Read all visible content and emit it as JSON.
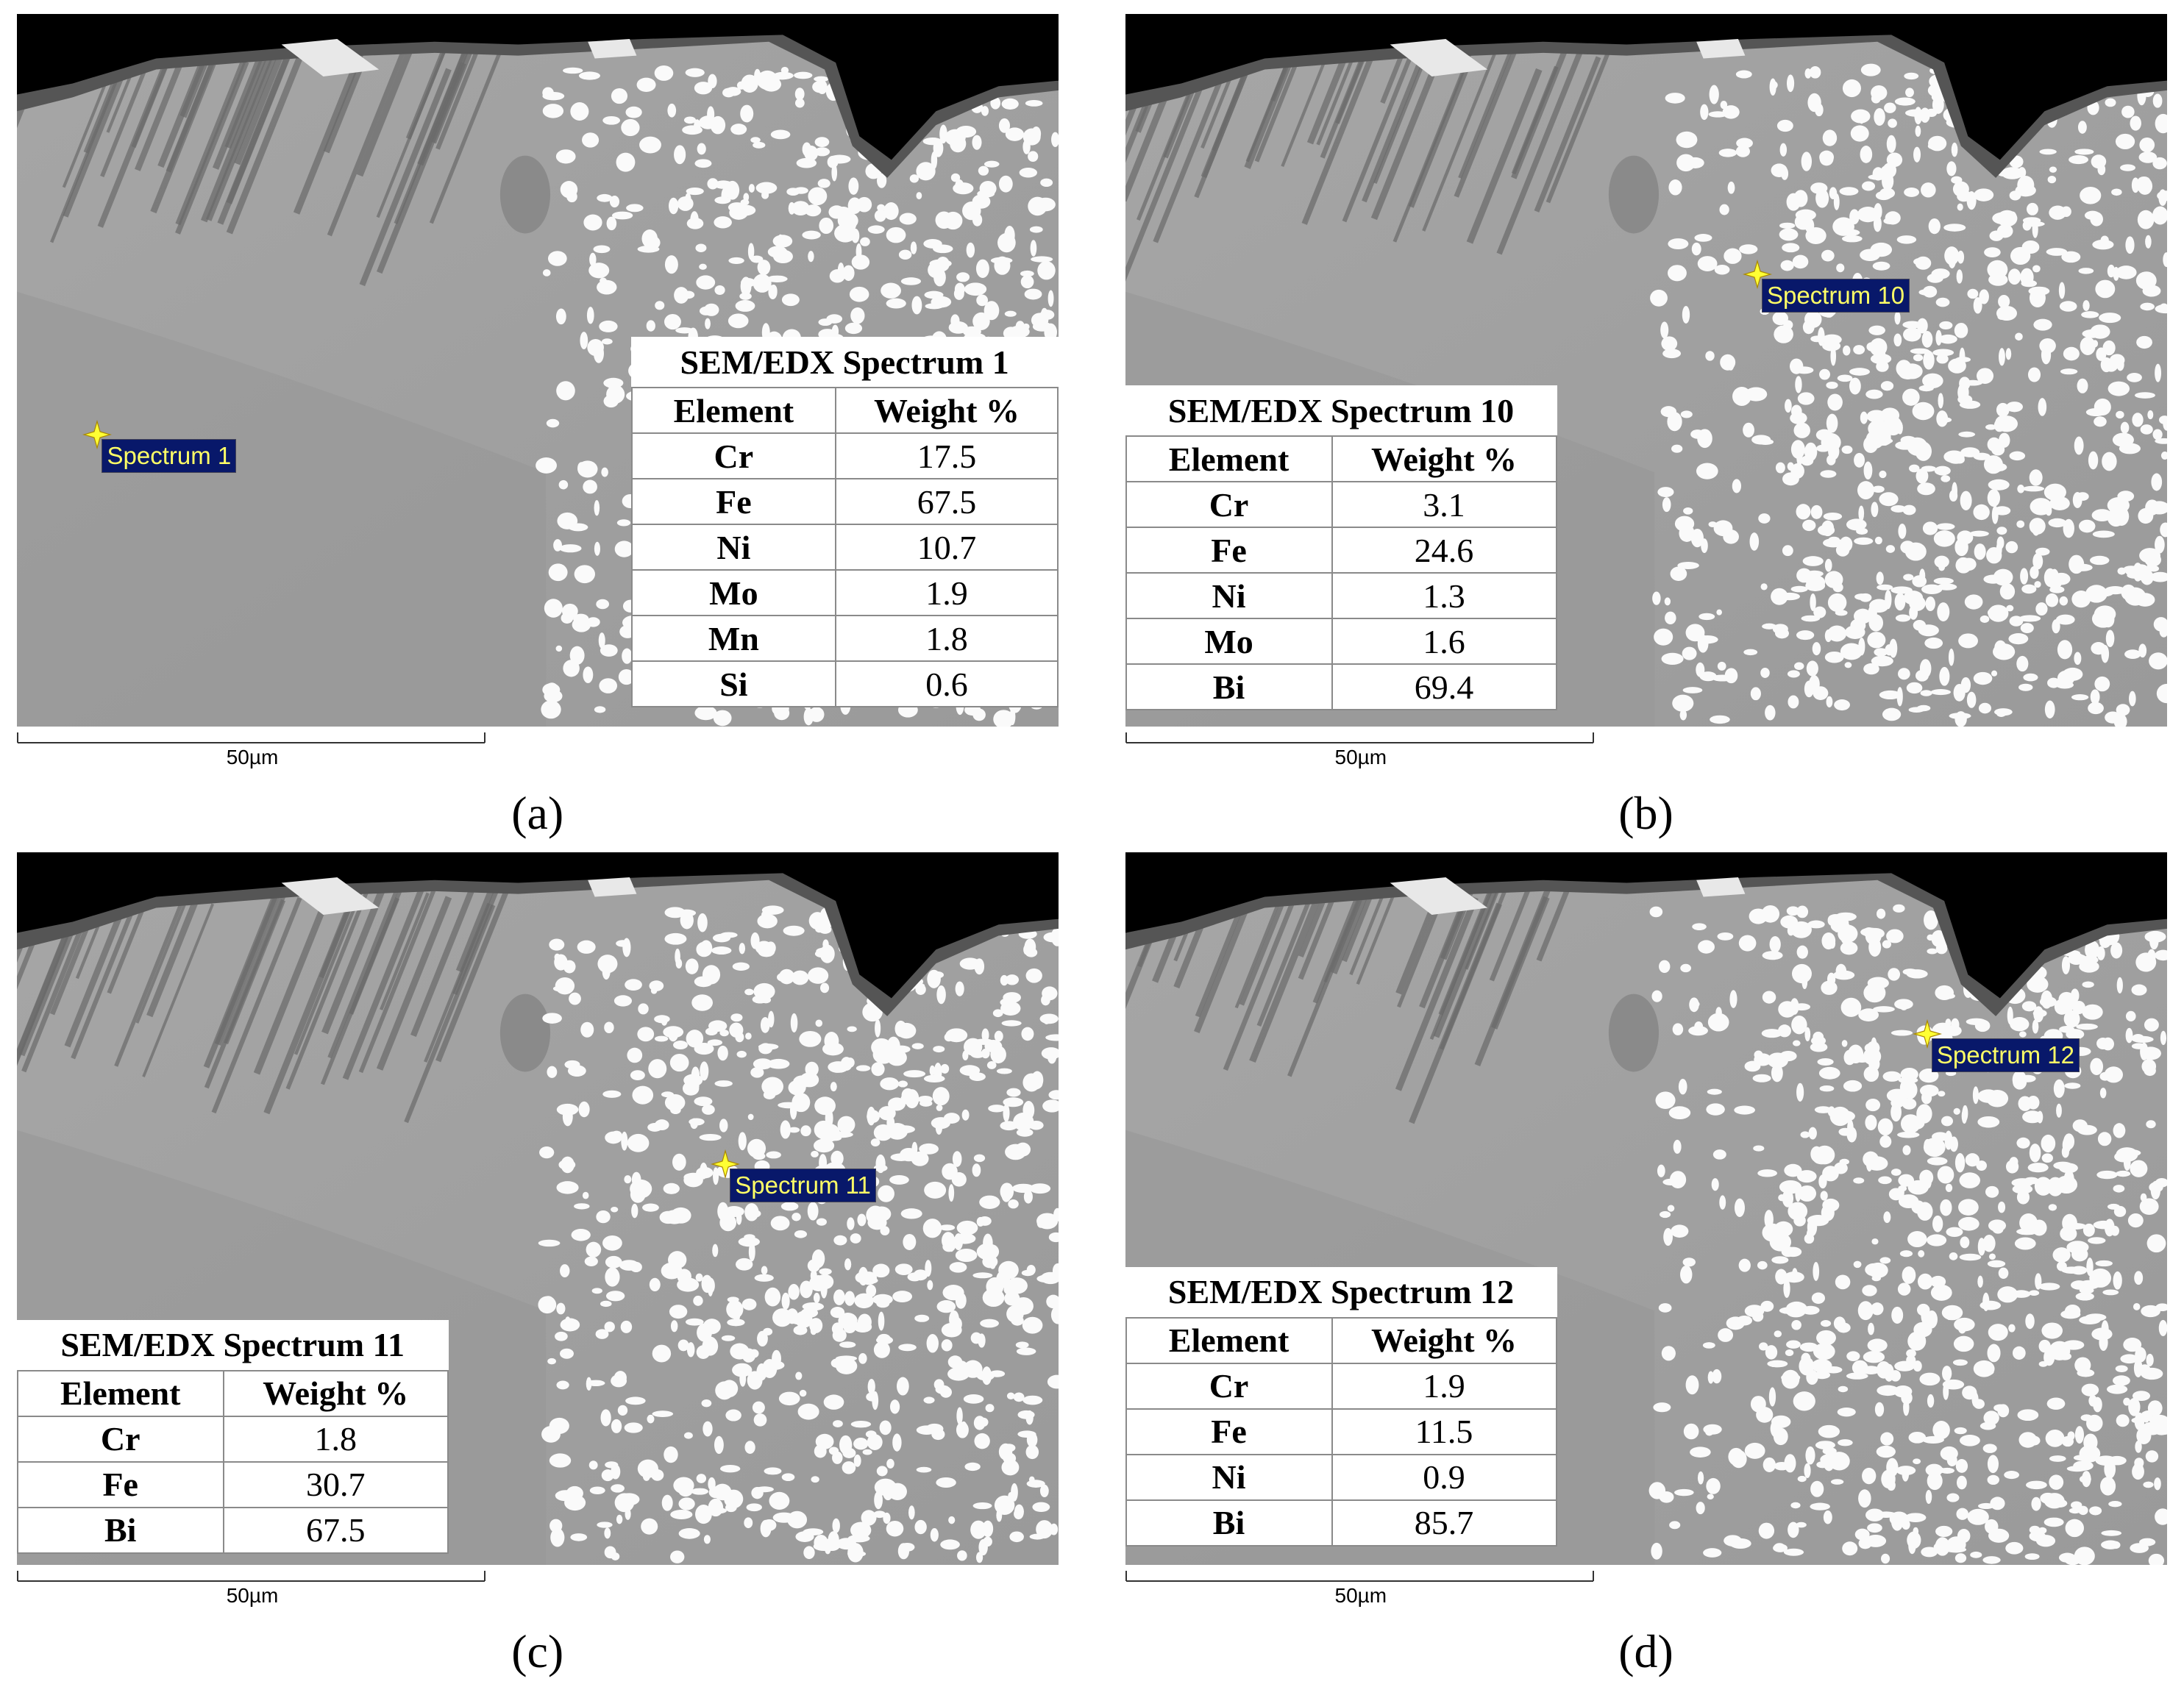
{
  "panels": [
    {
      "label": "(a)",
      "spectrum": "Spectrum 1",
      "scale": "50µm",
      "table": {
        "title": "SEM/EDX Spectrum 1",
        "headers": [
          "Element",
          "Weight %"
        ],
        "rows": [
          [
            "Cr",
            17.5
          ],
          [
            "Fe",
            67.5
          ],
          [
            "Ni",
            10.7
          ],
          [
            "Mo",
            1.9
          ],
          [
            "Mn",
            1.8
          ],
          [
            "Si",
            0.6
          ]
        ]
      }
    },
    {
      "label": "(b)",
      "spectrum": "Spectrum 10",
      "scale": "50µm",
      "table": {
        "title": "SEM/EDX Spectrum 10",
        "headers": [
          "Element",
          "Weight %"
        ],
        "rows": [
          [
            "Cr",
            3.1
          ],
          [
            "Fe",
            24.6
          ],
          [
            "Ni",
            1.3
          ],
          [
            "Mo",
            1.6
          ],
          [
            "Bi",
            69.4
          ]
        ]
      }
    },
    {
      "label": "(c)",
      "spectrum": "Spectrum 11",
      "scale": "50µm",
      "table": {
        "title": "SEM/EDX Spectrum 11",
        "headers": [
          "Element",
          "Weight %"
        ],
        "rows": [
          [
            "Cr",
            1.8
          ],
          [
            "Fe",
            30.7
          ],
          [
            "Bi",
            67.5
          ]
        ]
      }
    },
    {
      "label": "(d)",
      "spectrum": "Spectrum 12",
      "scale": "50µm",
      "table": {
        "title": "SEM/EDX Spectrum 12",
        "headers": [
          "Element",
          "Weight %"
        ],
        "rows": [
          [
            "Cr",
            1.9
          ],
          [
            "Fe",
            11.5
          ],
          [
            "Ni",
            0.9
          ],
          [
            "Bi",
            85.7
          ]
        ]
      }
    }
  ]
}
